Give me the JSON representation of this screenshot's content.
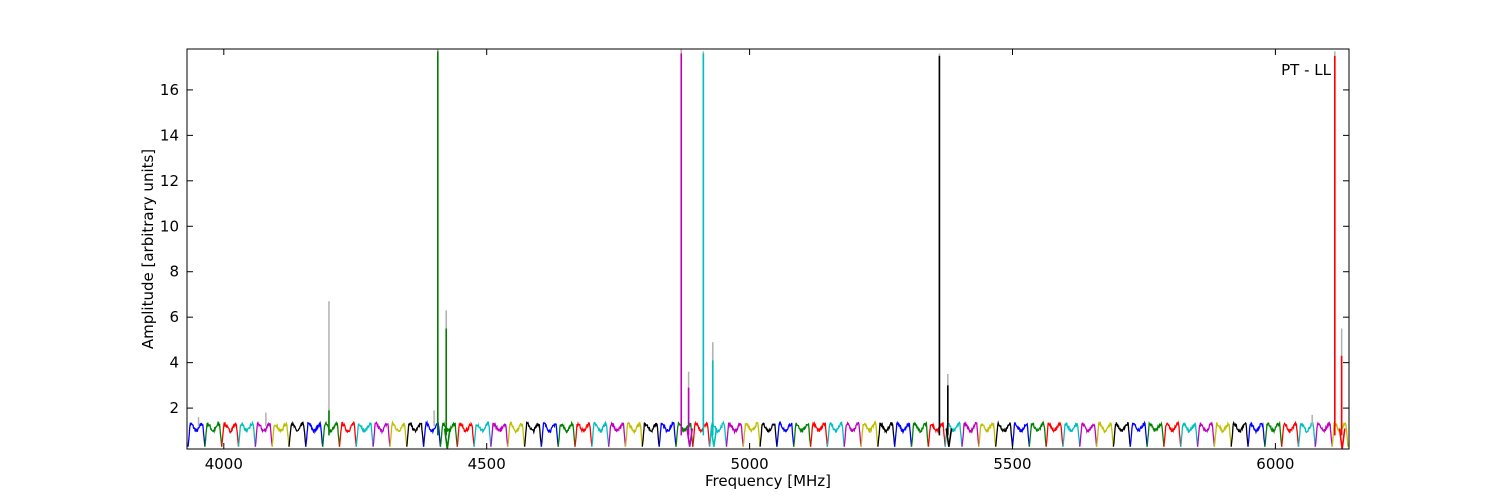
{
  "chart_data": {
    "type": "line",
    "title": "",
    "annotation": "PT - LL",
    "xlabel": "Frequency [MHz]",
    "ylabel": "Amplitude [arbitrary units]",
    "xlim": [
      3930,
      6140
    ],
    "ylim": [
      0.2,
      17.8
    ],
    "xticks": [
      4000,
      4500,
      5000,
      5500,
      6000
    ],
    "xtick_labels": [
      "4000",
      "4500",
      "5000",
      "5500",
      "6000"
    ],
    "yticks": [
      2,
      4,
      6,
      8,
      10,
      12,
      14,
      16
    ],
    "ytick_labels": [
      "2",
      "4",
      "6",
      "8",
      "10",
      "12",
      "14",
      "16"
    ],
    "grid": false,
    "legend": "none",
    "color_cycle": [
      "#0000ff",
      "#008000",
      "#ff0000",
      "#00bfbf",
      "#bf00bf",
      "#bfbf00",
      "#000000"
    ],
    "baseline": {
      "x_start": 3932,
      "x_end": 6138,
      "segment_width_mhz": 32,
      "min": 0.3,
      "max": 1.4,
      "color_order": [
        "blue",
        "green",
        "red",
        "cyan",
        "magenta",
        "yellow",
        "black"
      ]
    },
    "series": [
      {
        "color": "#008000",
        "peaks": [
          {
            "x": 4407,
            "y": 17.7
          },
          {
            "x": 4423,
            "y": 5.5
          },
          {
            "x": 4200,
            "y": 1.9
          }
        ],
        "dips": [
          {
            "x": 4425,
            "y": 0.2
          }
        ]
      },
      {
        "color": "#bf00bf",
        "peaks": [
          {
            "x": 4870,
            "y": 17.6
          },
          {
            "x": 4884,
            "y": 2.9
          }
        ],
        "dips": [
          {
            "x": 4886,
            "y": 0.3
          }
        ]
      },
      {
        "color": "#00bfbf",
        "peaks": [
          {
            "x": 4912,
            "y": 17.6
          },
          {
            "x": 4930,
            "y": 4.1
          }
        ],
        "dips": [
          {
            "x": 4932,
            "y": 0.3
          }
        ]
      },
      {
        "color": "#000000",
        "peaks": [
          {
            "x": 5361,
            "y": 17.5
          },
          {
            "x": 5377,
            "y": 3.0
          }
        ],
        "dips": [
          {
            "x": 5379,
            "y": 0.3
          }
        ]
      },
      {
        "color": "#ff0000",
        "peaks": [
          {
            "x": 6113,
            "y": 17.5
          },
          {
            "x": 6126,
            "y": 4.3
          }
        ],
        "dips": [
          {
            "x": 6127,
            "y": 0.2
          }
        ]
      }
    ],
    "gray_trace": {
      "color": "#b0b0b0",
      "peaks": [
        {
          "x": 4200,
          "y": 6.7
        },
        {
          "x": 4407,
          "y": 17.8
        },
        {
          "x": 4423,
          "y": 6.3
        },
        {
          "x": 4870,
          "y": 17.8
        },
        {
          "x": 4884,
          "y": 3.6
        },
        {
          "x": 4912,
          "y": 17.7
        },
        {
          "x": 4930,
          "y": 4.9
        },
        {
          "x": 5361,
          "y": 17.6
        },
        {
          "x": 5377,
          "y": 3.5
        },
        {
          "x": 6113,
          "y": 17.7
        },
        {
          "x": 6126,
          "y": 5.5
        },
        {
          "x": 4080,
          "y": 1.8
        },
        {
          "x": 4400,
          "y": 1.9
        },
        {
          "x": 6070,
          "y": 1.7
        },
        {
          "x": 3952,
          "y": 1.6
        }
      ]
    }
  }
}
